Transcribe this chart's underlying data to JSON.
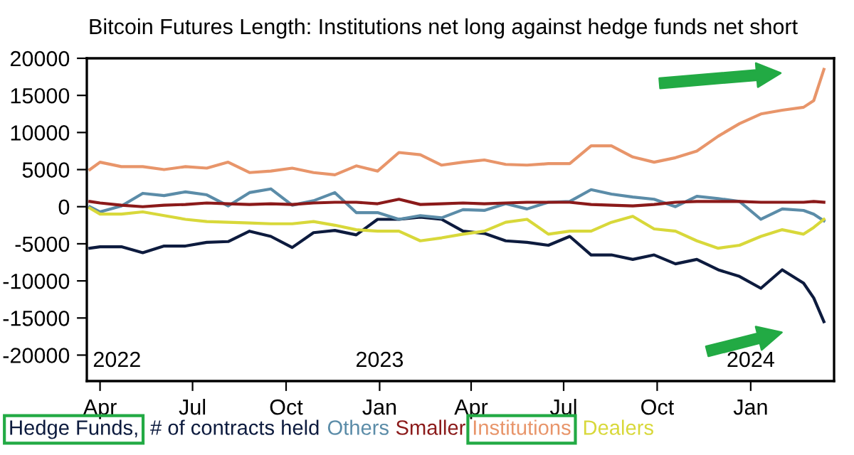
{
  "chart_data": {
    "type": "line",
    "title": "Bitcoin Futures Length: Institutions net long against hedge funds net short",
    "x": [
      "2022-03-22",
      "2022-04-01",
      "2022-04-22",
      "2022-05-13",
      "2022-06-03",
      "2022-06-24",
      "2022-07-15",
      "2022-08-05",
      "2022-08-26",
      "2022-09-16",
      "2022-10-07",
      "2022-10-28",
      "2022-11-18",
      "2022-12-09",
      "2022-12-30",
      "2023-01-20",
      "2023-02-10",
      "2023-03-03",
      "2023-03-24",
      "2023-04-14",
      "2023-05-05",
      "2023-05-26",
      "2023-06-16",
      "2023-07-07",
      "2023-07-28",
      "2023-08-17",
      "2023-09-07",
      "2023-09-28",
      "2023-10-19",
      "2023-11-09",
      "2023-11-30",
      "2023-12-21",
      "2024-01-11",
      "2024-02-01",
      "2024-02-22",
      "2024-03-03",
      "2024-03-13"
    ],
    "series": [
      {
        "name": "Hedge Funds,",
        "color": "#0d1b3e",
        "values": [
          -5600,
          -5400,
          -5400,
          -6200,
          -5300,
          -5300,
          -4800,
          -4700,
          -3300,
          -4000,
          -5500,
          -3500,
          -3200,
          -3800,
          -1700,
          -1700,
          -1400,
          -1700,
          -3300,
          -3600,
          -4600,
          -4800,
          -5200,
          -4000,
          -6500,
          -6500,
          -7100,
          -6500,
          -7700,
          -7100,
          -8500,
          -9400,
          -11000,
          -8500,
          -10300,
          -12300,
          -15500
        ]
      },
      {
        "name": "Others",
        "color": "#5b8ca8",
        "values": [
          0,
          -700,
          100,
          1800,
          1500,
          2000,
          1600,
          100,
          1900,
          2400,
          200,
          800,
          1900,
          -800,
          -800,
          -1700,
          -1200,
          -1500,
          -400,
          -500,
          400,
          -300,
          600,
          700,
          2300,
          1700,
          1300,
          1000,
          0,
          1400,
          1100,
          700,
          -1700,
          -300,
          -500,
          -1000,
          -1900
        ]
      },
      {
        "name": "Smaller",
        "color": "#8b1a1a",
        "values": [
          700,
          500,
          200,
          0,
          200,
          300,
          500,
          400,
          300,
          400,
          300,
          500,
          600,
          600,
          400,
          1000,
          300,
          400,
          500,
          400,
          500,
          600,
          600,
          600,
          300,
          200,
          100,
          300,
          600,
          700,
          700,
          700,
          600,
          600,
          600,
          700,
          600
        ]
      },
      {
        "name": "Institutions",
        "color": "#e8956a",
        "values": [
          5000,
          6000,
          5400,
          5400,
          5000,
          5400,
          5200,
          6000,
          4600,
          4800,
          5200,
          4600,
          4300,
          5500,
          4800,
          7300,
          7000,
          5600,
          6000,
          6300,
          5700,
          5600,
          5800,
          5800,
          8200,
          8200,
          6700,
          6000,
          6600,
          7500,
          9500,
          11200,
          12500,
          13000,
          13400,
          14300,
          18500
        ]
      },
      {
        "name": "Dealers",
        "color": "#d8d83a",
        "values": [
          -200,
          -1000,
          -1000,
          -700,
          -1200,
          -1700,
          -2000,
          -2100,
          -2200,
          -2300,
          -2300,
          -2000,
          -2500,
          -3100,
          -3300,
          -3300,
          -4600,
          -4200,
          -3700,
          -3300,
          -2100,
          -1700,
          -3700,
          -3300,
          -3300,
          -2100,
          -1300,
          -3000,
          -3300,
          -4600,
          -5600,
          -5200,
          -4000,
          -3100,
          -3700,
          -2800,
          -1700
        ]
      }
    ],
    "annotations": [
      "# of contracts held",
      "2022",
      "2023",
      "2024"
    ],
    "xlim": [
      "2022-03-19",
      "2024-03-23"
    ],
    "xticks": [
      {
        "value": "2022-04-01",
        "label": "Apr"
      },
      {
        "value": "2022-07-01",
        "label": "Jul"
      },
      {
        "value": "2022-10-01",
        "label": "Oct"
      },
      {
        "value": "2023-01-01",
        "label": "Jan"
      },
      {
        "value": "2023-04-01",
        "label": "Apr"
      },
      {
        "value": "2023-07-01",
        "label": "Jul"
      },
      {
        "value": "2023-10-01",
        "label": "Oct"
      },
      {
        "value": "2024-01-01",
        "label": "Jan"
      }
    ],
    "ylim": [
      -23500,
      20000
    ],
    "yticks": [
      -20000,
      -15000,
      -10000,
      -5000,
      0,
      5000,
      10000,
      15000,
      20000
    ],
    "legend": "bottom",
    "grid": false,
    "marker": "none",
    "line_style": "solid"
  }
}
